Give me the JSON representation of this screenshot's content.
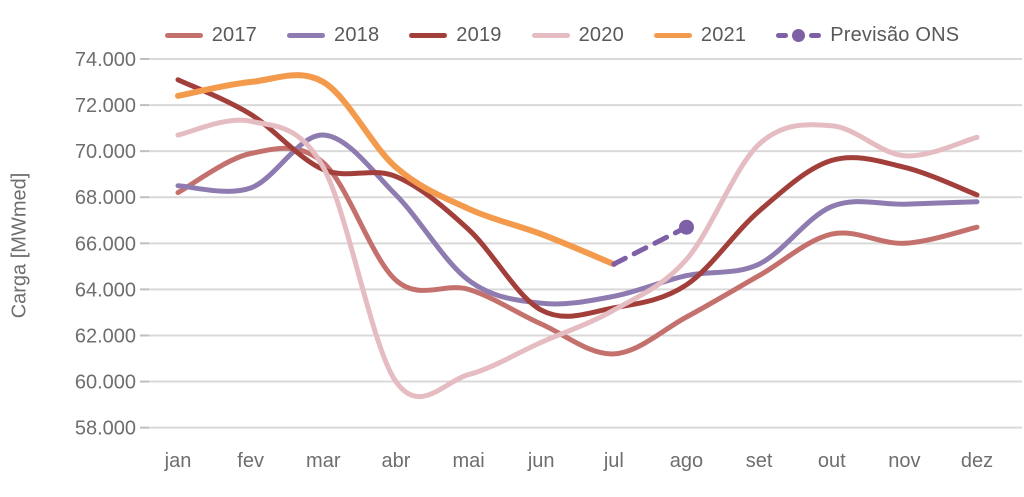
{
  "chart_data": {
    "type": "line",
    "title": "",
    "xlabel": "",
    "ylabel": "Carga [MWmed]",
    "ylim": [
      58000,
      74000
    ],
    "grid": "horizontal",
    "legend_position": "top",
    "categories": [
      "jan",
      "fev",
      "mar",
      "abr",
      "mai",
      "jun",
      "jul",
      "ago",
      "set",
      "out",
      "nov",
      "dez"
    ],
    "y_ticks": [
      {
        "value": 58000,
        "label": "58.000"
      },
      {
        "value": 60000,
        "label": "60.000"
      },
      {
        "value": 62000,
        "label": "62.000"
      },
      {
        "value": 64000,
        "label": "64.000"
      },
      {
        "value": 66000,
        "label": "66.000"
      },
      {
        "value": 68000,
        "label": "68.000"
      },
      {
        "value": 70000,
        "label": "70.000"
      },
      {
        "value": 72000,
        "label": "72.000"
      },
      {
        "value": 74000,
        "label": "74.000"
      }
    ],
    "series": [
      {
        "name": "2017",
        "color": "#c4716e",
        "style": "solid",
        "values": [
          68200,
          69900,
          69500,
          64400,
          64000,
          62500,
          61200,
          62800,
          64600,
          66400,
          66000,
          66700
        ]
      },
      {
        "name": "2018",
        "color": "#8e7cb0",
        "style": "solid",
        "values": [
          68500,
          68400,
          70700,
          68100,
          64400,
          63400,
          63700,
          64600,
          65100,
          67600,
          67700,
          67800
        ]
      },
      {
        "name": "2019",
        "color": "#a23f3b",
        "style": "solid",
        "values": [
          73100,
          71600,
          69200,
          68900,
          66600,
          63100,
          63200,
          64200,
          67400,
          69600,
          69300,
          68100
        ]
      },
      {
        "name": "2020",
        "color": "#e4bcc1",
        "style": "solid",
        "values": [
          70700,
          71300,
          69300,
          60000,
          60300,
          61700,
          63100,
          65300,
          70300,
          71100,
          69800,
          70600
        ]
      },
      {
        "name": "2021",
        "color": "#f39a4c",
        "style": "solid",
        "values": [
          72400,
          73000,
          73000,
          69300,
          67500,
          66400,
          65100,
          null,
          null,
          null,
          null,
          null
        ]
      },
      {
        "name": "Previsão ONS",
        "color": "#7d60a5",
        "style": "dashed",
        "marker": "circle",
        "values": [
          null,
          null,
          null,
          null,
          null,
          null,
          65100,
          66700,
          null,
          null,
          null,
          null
        ]
      }
    ]
  }
}
